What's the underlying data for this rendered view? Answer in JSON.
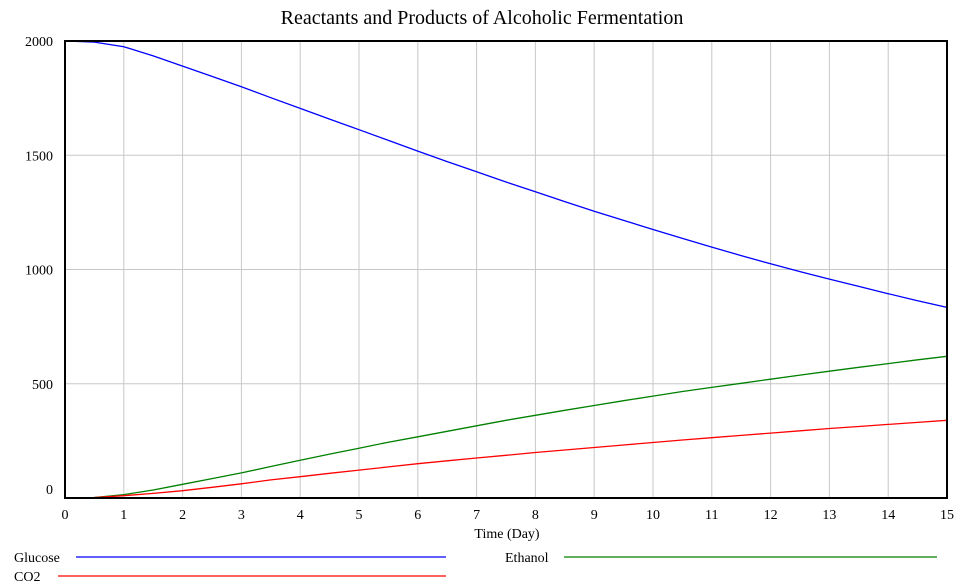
{
  "chart_data": {
    "type": "line",
    "title": "Reactants and Products of Alcoholic Fermentation",
    "xlabel": "Time (Day)",
    "ylabel": "",
    "xlim": [
      0,
      15
    ],
    "ylim": [
      0,
      2000
    ],
    "x_ticks": [
      0,
      1,
      2,
      3,
      4,
      5,
      6,
      7,
      8,
      9,
      10,
      11,
      12,
      13,
      14,
      15
    ],
    "y_ticks": [
      0,
      500,
      1000,
      1500,
      2000
    ],
    "grid": true,
    "legend_position": "bottom",
    "x": [
      0,
      0.5,
      1,
      1.5,
      2,
      2.5,
      3,
      3.5,
      4,
      4.5,
      5,
      5.5,
      6,
      6.5,
      7,
      7.5,
      8,
      8.5,
      9,
      9.5,
      10,
      10.5,
      11,
      11.5,
      12,
      12.5,
      13,
      13.5,
      14,
      14.5,
      15
    ],
    "series": [
      {
        "name": "Glucose",
        "color": "#0000ff",
        "values": [
          2000,
          1995,
          1975,
          1935,
          1890,
          1845,
          1800,
          1752,
          1705,
          1658,
          1612,
          1565,
          1518,
          1472,
          1428,
          1383,
          1340,
          1297,
          1255,
          1215,
          1175,
          1136,
          1098,
          1061,
          1025,
          991,
          958,
          926,
          894,
          863,
          834
        ]
      },
      {
        "name": "Ethanol",
        "color": "#008000",
        "values": [
          0,
          2,
          15,
          35,
          60,
          85,
          110,
          138,
          165,
          192,
          218,
          244,
          268,
          292,
          316,
          340,
          362,
          384,
          405,
          426,
          446,
          466,
          484,
          502,
          520,
          538,
          555,
          572,
          588,
          605,
          620
        ]
      },
      {
        "name": "CO2",
        "color": "#ff0000",
        "values": [
          0,
          2,
          10,
          20,
          32,
          47,
          62,
          79,
          93,
          108,
          122,
          136,
          150,
          163,
          175,
          187,
          199,
          210,
          221,
          232,
          243,
          254,
          264,
          274,
          284,
          294,
          304,
          313,
          322,
          331,
          340
        ]
      }
    ]
  }
}
